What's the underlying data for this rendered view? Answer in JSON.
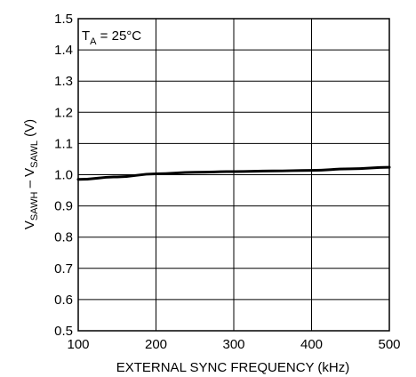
{
  "chart_data": {
    "type": "line",
    "xlabel": "EXTERNAL SYNC FREQUENCY (kHz)",
    "ylabel_parts": {
      "v1": "V",
      "sub1": "SAWH",
      "minus": " – ",
      "v2": "V",
      "sub2": "SAWL",
      "unit": " (V)"
    },
    "annotation_parts": {
      "t": "T",
      "sub": "A",
      "rest": " = 25°C"
    },
    "xlim": [
      100,
      500
    ],
    "ylim": [
      0.5,
      1.5
    ],
    "x_ticks": [
      100,
      200,
      300,
      400,
      500
    ],
    "x_tick_labels": [
      "100",
      "200",
      "300",
      "400",
      "500"
    ],
    "y_ticks": [
      0.5,
      0.6,
      0.7,
      0.8,
      0.9,
      1.0,
      1.1,
      1.2,
      1.3,
      1.4,
      1.5
    ],
    "y_tick_labels": [
      "0.5",
      "0.6",
      "0.7",
      "0.8",
      "0.9",
      "1.0",
      "1.1",
      "1.2",
      "1.3",
      "1.4",
      "1.5"
    ],
    "grid": true,
    "series": [
      {
        "x": [
          100,
          150,
          200,
          250,
          300,
          350,
          400,
          450,
          500
        ],
        "y": [
          0.985,
          0.993,
          1.003,
          1.008,
          1.01,
          1.012,
          1.014,
          1.019,
          1.024
        ]
      }
    ]
  }
}
